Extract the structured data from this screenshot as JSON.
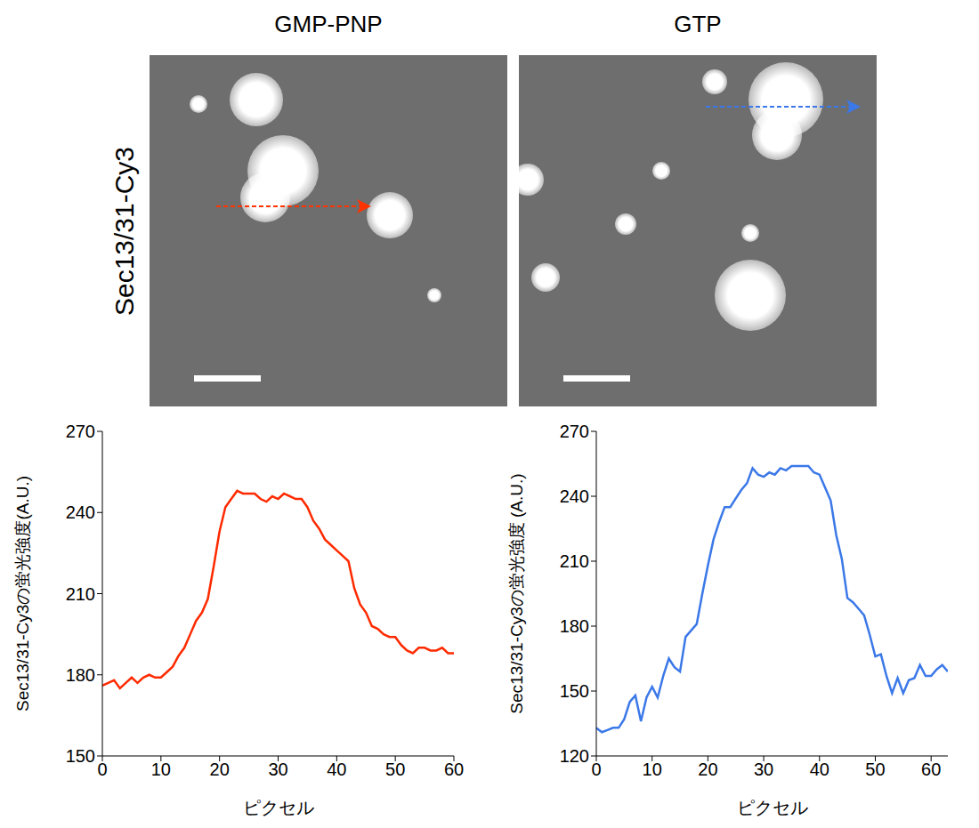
{
  "image_panels": {
    "titles": [
      "GMP-PNP",
      "GTP"
    ],
    "row_label": "Sec13/31-Cy3"
  },
  "chart_data": [
    {
      "type": "line",
      "color": "#ff2a00",
      "x": [
        0,
        1,
        2,
        3,
        4,
        5,
        6,
        7,
        8,
        9,
        10,
        11,
        12,
        13,
        14,
        15,
        16,
        17,
        18,
        19,
        20,
        21,
        22,
        23,
        24,
        25,
        26,
        27,
        28,
        29,
        30,
        31,
        32,
        33,
        34,
        35,
        36,
        37,
        38,
        39,
        40,
        41,
        42,
        43,
        44,
        45,
        46,
        47,
        48,
        49,
        50,
        51,
        52,
        53,
        54,
        55,
        56,
        57,
        58,
        59,
        60
      ],
      "values": [
        176,
        177,
        178,
        175,
        177,
        179,
        177,
        179,
        180,
        179,
        179,
        181,
        183,
        187,
        190,
        195,
        200,
        203,
        208,
        220,
        233,
        242,
        245,
        248,
        247,
        247,
        247,
        245,
        244,
        246,
        245,
        247,
        246,
        245,
        245,
        242,
        237,
        234,
        230,
        228,
        226,
        224,
        222,
        212,
        206,
        203,
        198,
        197,
        195,
        194,
        194,
        191,
        189,
        188,
        190,
        190,
        189,
        189,
        190,
        188,
        188
      ],
      "xlim": [
        0,
        60
      ],
      "xticks": [
        0,
        10,
        20,
        30,
        40,
        50,
        60
      ],
      "ylim": [
        150,
        270
      ],
      "yticks": [
        150,
        180,
        210,
        240,
        270
      ],
      "x_label": "ピクセル",
      "y_label": "Sec13/31-Cy3の蛍光強度(A.U.)"
    },
    {
      "type": "line",
      "color": "#3b78e8",
      "x": [
        0,
        1,
        2,
        3,
        4,
        5,
        6,
        7,
        8,
        9,
        10,
        11,
        12,
        13,
        14,
        15,
        16,
        17,
        18,
        19,
        20,
        21,
        22,
        23,
        24,
        25,
        26,
        27,
        28,
        29,
        30,
        31,
        32,
        33,
        34,
        35,
        36,
        37,
        38,
        39,
        40,
        41,
        42,
        43,
        44,
        45,
        46,
        47,
        48,
        49,
        50,
        51,
        52,
        53,
        54,
        55,
        56,
        57,
        58,
        59,
        60,
        61,
        62,
        63
      ],
      "values": [
        133,
        131,
        132,
        133,
        133,
        137,
        145,
        148,
        136,
        147,
        152,
        147,
        157,
        165,
        161,
        159,
        175,
        178,
        181,
        195,
        208,
        220,
        228,
        235,
        235,
        239,
        243,
        246,
        253,
        250,
        249,
        251,
        250,
        253,
        252,
        254,
        254,
        254,
        254,
        251,
        250,
        244,
        238,
        222,
        211,
        193,
        191,
        188,
        185,
        176,
        166,
        167,
        157,
        149,
        156,
        149,
        155,
        156,
        162,
        157,
        157,
        160,
        162,
        159
      ],
      "xlim": [
        0,
        63
      ],
      "xticks": [
        0,
        10,
        20,
        30,
        40,
        50,
        60
      ],
      "ylim": [
        120,
        270
      ],
      "yticks": [
        120,
        150,
        180,
        210,
        240,
        270
      ],
      "x_label": "ピクセル",
      "y_label": "Sec13/31-Cy3の蛍光強度 (A.U.)"
    }
  ]
}
